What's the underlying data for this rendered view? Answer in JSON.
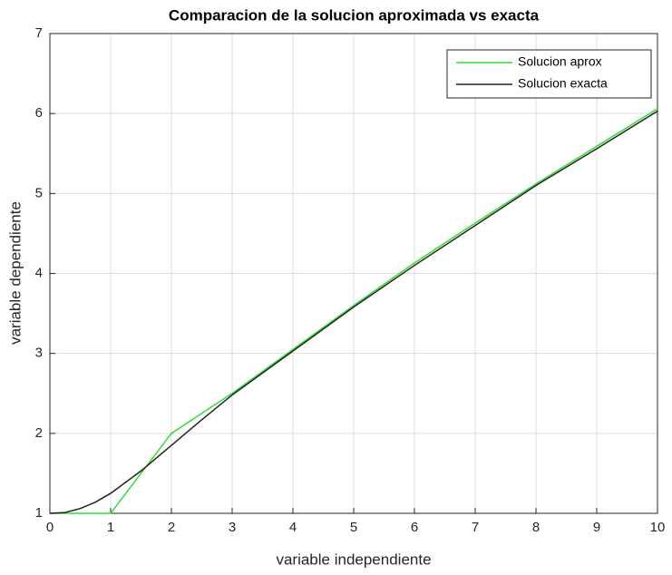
{
  "chart_data": {
    "type": "line",
    "title": "Comparacion de la solucion aproximada vs exacta",
    "xlabel": "variable independiente",
    "ylabel": "variable dependiente",
    "series": [
      {
        "name": "Solucion aprox",
        "color": "#33dd33",
        "x": [
          0,
          1,
          2,
          3,
          4,
          5,
          6,
          7,
          8,
          9,
          10
        ],
        "values": [
          1,
          1,
          2,
          2.5,
          3.05,
          3.6,
          4.13,
          4.63,
          5.12,
          5.59,
          6.06
        ]
      },
      {
        "name": "Solucion exacta",
        "color": "#222222",
        "x": [
          0,
          0.25,
          0.5,
          0.75,
          1,
          1.5,
          2,
          2.5,
          3,
          4,
          5,
          6,
          7,
          8,
          9,
          10
        ],
        "values": [
          1,
          1.01,
          1.06,
          1.14,
          1.25,
          1.53,
          1.85,
          2.17,
          2.48,
          3.03,
          3.58,
          4.1,
          4.6,
          5.1,
          5.56,
          6.03
        ]
      }
    ],
    "xlim": [
      0,
      10
    ],
    "xticks": [
      0,
      1,
      2,
      3,
      4,
      5,
      6,
      7,
      8,
      9,
      10
    ],
    "ylim": [
      1,
      7
    ],
    "yticks": [
      1,
      2,
      3,
      4,
      5,
      6,
      7
    ],
    "grid": true,
    "legend": "top-right"
  }
}
